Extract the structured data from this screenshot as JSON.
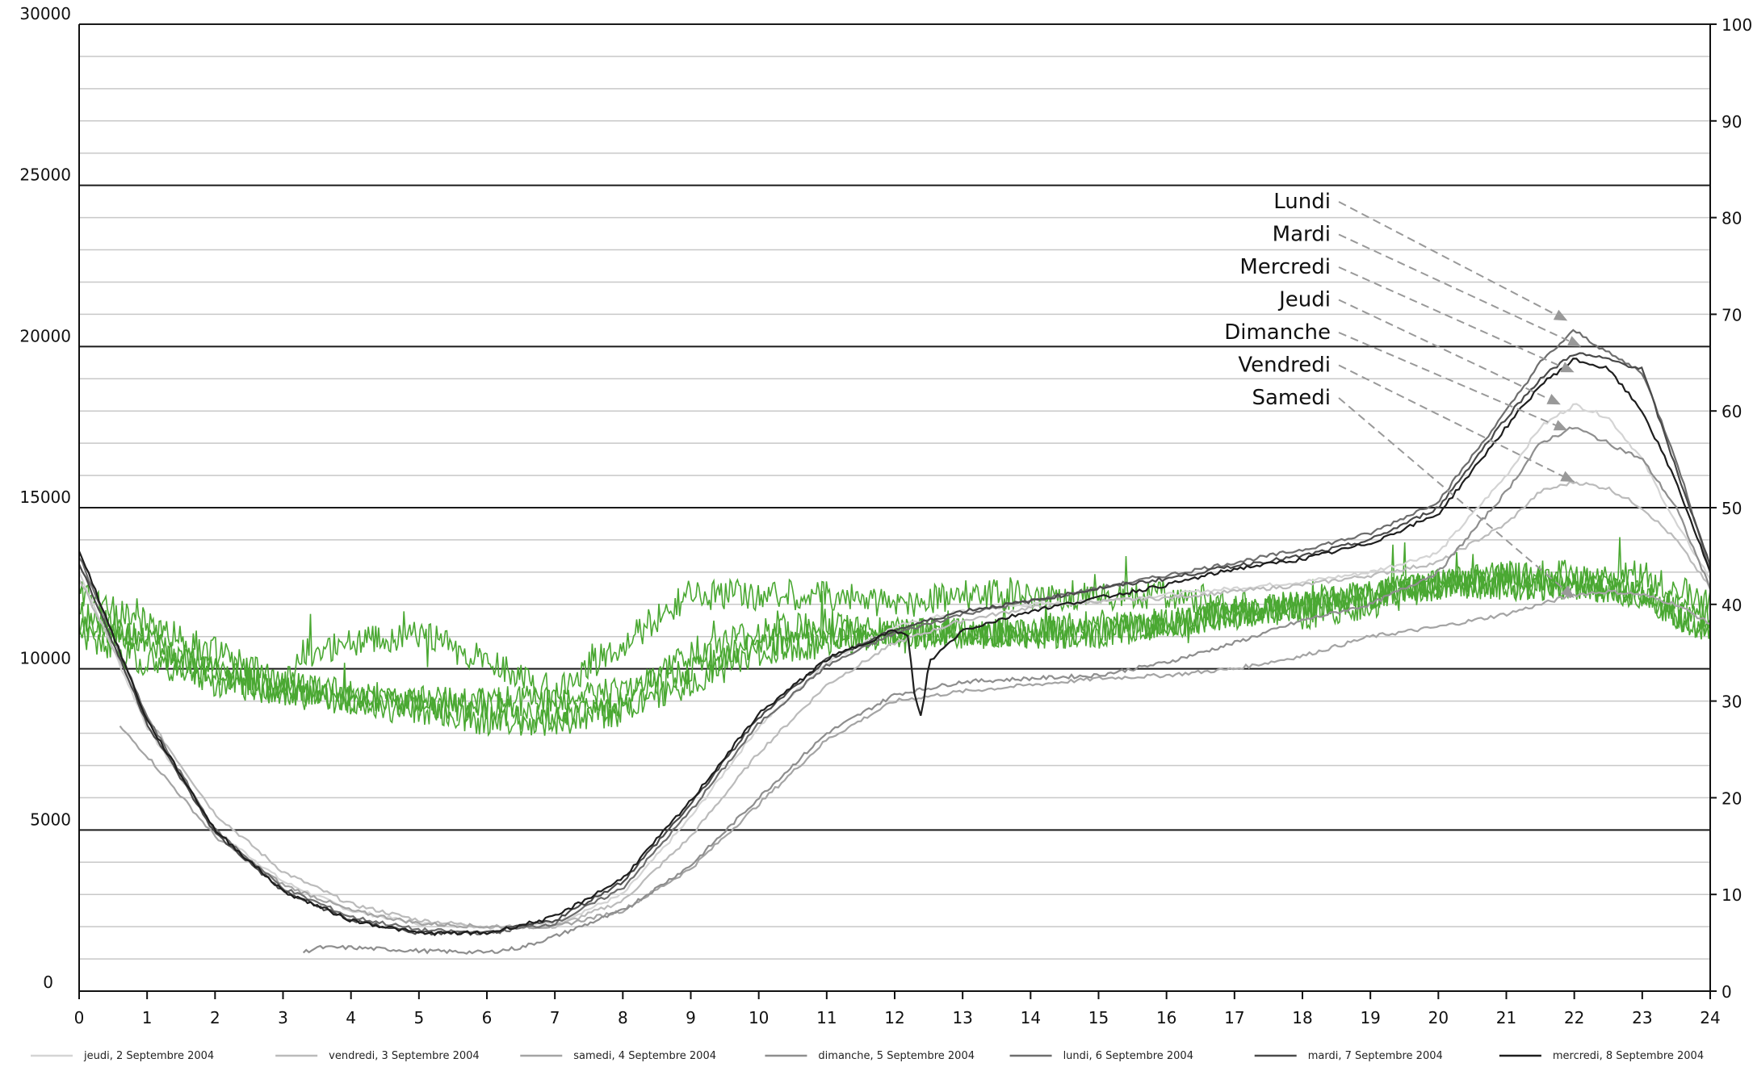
{
  "chart_data": {
    "type": "line",
    "xlabel": "",
    "ylabel": "",
    "xlim": [
      0,
      24
    ],
    "ylim": [
      0,
      30000
    ],
    "y2lim": [
      0,
      100
    ],
    "x_ticks": [
      "0",
      "1",
      "2",
      "3",
      "4",
      "5",
      "6",
      "7",
      "8",
      "9",
      "10",
      "11",
      "12",
      "13",
      "14",
      "15",
      "16",
      "17",
      "18",
      "19",
      "20",
      "21",
      "22",
      "23",
      "24"
    ],
    "y_ticks": [
      "0",
      "5000",
      "10000",
      "15000",
      "20000",
      "25000",
      "30000"
    ],
    "y2_ticks": [
      "0",
      "10",
      "20",
      "30",
      "40",
      "50",
      "60",
      "70",
      "80",
      "90",
      "100"
    ],
    "grid": true,
    "legend_position": "bottom",
    "colors": {
      "green": "#4aa832",
      "major_grid": "#1a1a1a",
      "minor_grid": "#c8c8c8"
    },
    "series": [
      {
        "name": "jeudi, 2 Septembre 2004",
        "color": "#d4d4d4",
        "x": [
          0,
          1,
          2,
          3,
          4,
          5,
          6,
          7,
          8,
          9,
          10,
          11,
          12,
          13,
          14,
          15,
          16,
          17,
          18,
          19,
          20,
          21,
          21.5,
          22,
          22.5,
          23,
          23.5,
          24
        ],
        "values": [
          13000,
          8200,
          5000,
          3400,
          2500,
          2100,
          2000,
          2100,
          3000,
          5400,
          8200,
          10200,
          11300,
          11800,
          12000,
          12100,
          12300,
          12500,
          12700,
          13000,
          13600,
          16000,
          17500,
          18200,
          17800,
          16500,
          14500,
          12800
        ]
      },
      {
        "name": "vendredi, 3 Septembre 2004",
        "color": "#bbbbbb",
        "x": [
          0,
          1,
          2,
          3,
          4,
          5,
          6,
          7,
          8,
          9,
          10,
          11,
          12,
          13,
          14,
          15,
          16,
          17,
          18,
          19,
          20,
          21,
          21.5,
          22,
          22.5,
          23,
          23.5,
          24
        ],
        "values": [
          12800,
          8500,
          5500,
          3700,
          2700,
          2200,
          2000,
          2000,
          2800,
          4800,
          7400,
          9500,
          10800,
          11500,
          11900,
          12100,
          12200,
          12400,
          12600,
          12900,
          13300,
          14500,
          15500,
          15800,
          15600,
          15000,
          14000,
          12500
        ]
      },
      {
        "name": "samedi, 4 Septembre 2004",
        "color": "#a4a4a4",
        "x": [
          0.6,
          1,
          2,
          3,
          4,
          5,
          6,
          7,
          8,
          9,
          10,
          11,
          12,
          13,
          14,
          15,
          16,
          17,
          18,
          19,
          20,
          21,
          21.5,
          22,
          22.5,
          23,
          23.5,
          24
        ],
        "values": [
          8200,
          7300,
          4800,
          3300,
          2500,
          2100,
          2000,
          2000,
          2500,
          3800,
          5800,
          7800,
          9000,
          9300,
          9500,
          9700,
          9800,
          10000,
          10400,
          11000,
          11300,
          11700,
          12000,
          12300,
          12400,
          12300,
          12000,
          11400
        ]
      },
      {
        "name": "dimanche, 5 Septembre 2004",
        "color": "#8e8e8e",
        "x": [
          3.3,
          3.5,
          4,
          5,
          6,
          6.5,
          7,
          8,
          9,
          10,
          11,
          12,
          13,
          14,
          15,
          16,
          17,
          18,
          19,
          20,
          21,
          21.5,
          22,
          22.5,
          23,
          23.5,
          24
        ],
        "values": [
          1200,
          1350,
          1350,
          1250,
          1200,
          1350,
          1700,
          2500,
          3900,
          6000,
          8000,
          9200,
          9600,
          9700,
          9800,
          10200,
          10800,
          11500,
          12000,
          13000,
          15500,
          17000,
          17500,
          17000,
          16500,
          15000,
          12500
        ]
      },
      {
        "name": "lundi, 6 Septembre 2004",
        "color": "#6e6e6e",
        "x": [
          0,
          1,
          2,
          3,
          4,
          5,
          6,
          7,
          8,
          9,
          10,
          11,
          12,
          13,
          14,
          15,
          16,
          17,
          18,
          19,
          20,
          21,
          21.5,
          22,
          22.5,
          23,
          23.5,
          24
        ],
        "values": [
          13500,
          8500,
          5000,
          3200,
          2300,
          1900,
          1800,
          2100,
          3200,
          5600,
          8300,
          10100,
          11100,
          11700,
          12100,
          12500,
          12900,
          13300,
          13700,
          14200,
          15200,
          18000,
          19500,
          20500,
          19800,
          19200,
          16500,
          13000
        ]
      },
      {
        "name": "mardi, 7 Septembre 2004",
        "color": "#4a4a4a",
        "x": [
          0,
          1,
          2,
          3,
          4,
          5,
          6,
          7,
          8,
          9,
          10,
          11,
          12,
          13,
          14,
          15,
          16,
          17,
          18,
          19,
          20,
          21,
          21.5,
          22,
          22.5,
          23,
          23.5,
          24
        ],
        "values": [
          13300,
          8300,
          4900,
          3100,
          2200,
          1800,
          1800,
          2200,
          3400,
          5800,
          8500,
          10300,
          11200,
          11800,
          12100,
          12500,
          12800,
          13200,
          13500,
          14000,
          15000,
          17800,
          19000,
          19800,
          19600,
          19300,
          16200,
          13200
        ]
      },
      {
        "name": "mercredi, 8 Septembre 2004",
        "color": "#1e1e1e",
        "x": [
          0,
          1,
          2,
          3,
          4,
          5,
          6,
          7,
          8,
          9,
          10,
          11,
          12,
          12.2,
          12.3,
          12.4,
          12.5,
          13,
          14,
          15,
          16,
          17,
          18,
          19,
          20,
          21,
          21.5,
          22,
          22.5,
          23,
          23.5,
          24
        ],
        "values": [
          13700,
          8400,
          5000,
          3100,
          2200,
          1800,
          1800,
          2300,
          3500,
          5900,
          8600,
          10300,
          11200,
          11000,
          9000,
          8500,
          10200,
          11200,
          11800,
          12200,
          12600,
          13100,
          13400,
          13900,
          14800,
          17500,
          18800,
          19600,
          19300,
          18000,
          15800,
          13000
        ]
      },
      {
        "name": "",
        "color": "#4aa832",
        "axis": "y2",
        "x": [
          0,
          1,
          2,
          3,
          4,
          5,
          6,
          7,
          8,
          9,
          10,
          11,
          12,
          13,
          14,
          15,
          16,
          17,
          18,
          19,
          20,
          21,
          22,
          23,
          24
        ],
        "values": [
          41,
          38,
          35,
          32,
          30,
          29,
          28,
          28,
          30,
          35,
          37,
          38,
          37,
          37,
          37,
          37,
          38,
          39,
          40,
          41,
          42,
          42,
          42,
          41,
          38
        ]
      },
      {
        "name": "",
        "color": "#4aa832",
        "axis": "y2",
        "x": [
          0,
          1,
          2,
          3,
          4,
          5,
          6,
          7,
          8,
          9,
          10,
          11,
          12,
          13,
          14,
          15,
          16,
          17,
          18,
          19,
          20,
          21,
          22,
          23,
          24
        ],
        "values": [
          37,
          34,
          32,
          31,
          31,
          30,
          30,
          30,
          31,
          33,
          36,
          37,
          37,
          37,
          37,
          38,
          38,
          39,
          40,
          41,
          42,
          43,
          43,
          43,
          40
        ]
      },
      {
        "name": "",
        "color": "#4aa832",
        "axis": "y2",
        "x": [
          0,
          1,
          2,
          3,
          3.3,
          4,
          5,
          6,
          7,
          8,
          9,
          10,
          11,
          12,
          13,
          14,
          15,
          16,
          17,
          18,
          19,
          20,
          21,
          22,
          23,
          24
        ],
        "values": [
          38,
          36,
          33,
          31,
          35,
          36,
          37,
          34,
          31,
          36,
          41,
          41,
          41,
          40,
          41,
          41,
          41,
          41,
          40,
          39,
          40,
          42,
          43,
          42,
          41,
          37
        ]
      },
      {
        "name": "",
        "color": "#4aa832",
        "axis": "y2",
        "x": [
          0,
          1,
          2,
          3,
          4,
          5,
          6,
          7,
          8,
          9,
          10,
          11,
          12,
          13,
          14,
          15,
          16,
          17,
          18,
          19,
          20,
          21,
          22,
          23,
          24
        ],
        "values": [
          39,
          36,
          33,
          31,
          30,
          30,
          29,
          28,
          29,
          32,
          35,
          36,
          37,
          37,
          37,
          37,
          38,
          39,
          40,
          41,
          42,
          42,
          42,
          41,
          37
        ]
      }
    ],
    "annotations": [
      {
        "text": "Lundi",
        "x": 21.9,
        "y": 20800
      },
      {
        "text": "Mardi",
        "x": 22.1,
        "y": 20000
      },
      {
        "text": "Mercredi",
        "x": 22.0,
        "y": 19200
      },
      {
        "text": "Jeudi",
        "x": 21.8,
        "y": 18200
      },
      {
        "text": "Dimanche",
        "x": 21.9,
        "y": 17400
      },
      {
        "text": "Vendredi",
        "x": 22.0,
        "y": 15800
      },
      {
        "text": "Samedi",
        "x": 22.0,
        "y": 12200
      }
    ]
  }
}
